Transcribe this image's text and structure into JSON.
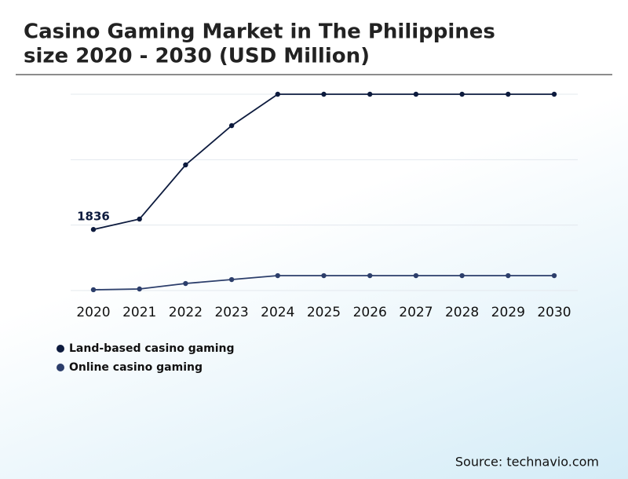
{
  "chart_data": {
    "type": "line",
    "title": [
      "Casino Gaming Market in The Philippines",
      "size 2020 - 2030 (USD Million)"
    ],
    "categories": [
      "2020",
      "2021",
      "2022",
      "2023",
      "2024",
      "2025",
      "2026",
      "2027",
      "2028",
      "2029",
      "2030"
    ],
    "series": [
      {
        "name": "Land-based casino gaming",
        "color": "#0d1b3e",
        "values": [
          1836,
          2148,
          3776,
          4956,
          5900,
          5900,
          5900,
          5900,
          5900,
          5900,
          5900
        ],
        "value_labels": [
          "1836",
          null,
          null,
          null,
          null,
          null,
          null,
          null,
          null,
          null,
          null
        ]
      },
      {
        "name": "Online casino gaming",
        "color": "#2c3e6b",
        "values": [
          24,
          47,
          212,
          330,
          448,
          448,
          448,
          448,
          448,
          448,
          448
        ]
      }
    ],
    "ylim": [
      0,
      5900
    ],
    "grid": true,
    "legend": "bottom-left",
    "source": "Source: technavio.com"
  }
}
